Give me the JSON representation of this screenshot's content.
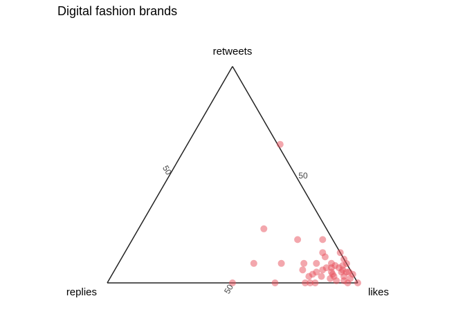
{
  "chart_data": {
    "type": "scatter",
    "subtype": "ternary",
    "title": "Digital fashion brands",
    "axes": {
      "top": "retweets",
      "left": "replies",
      "right": "likes"
    },
    "tick_labels": {
      "left_edge": "50",
      "right_edge": "50",
      "bottom_edge": "50"
    },
    "point_color": "#E8505B",
    "point_opacity": 0.5,
    "grid": false,
    "components_order": [
      "likes",
      "retweets",
      "replies"
    ],
    "points": [
      [
        37,
        64,
        -1
      ],
      [
        50,
        25,
        25
      ],
      [
        66,
        20,
        14
      ],
      [
        76,
        20,
        4
      ],
      [
        86,
        14,
        0
      ],
      [
        79,
        14,
        7
      ],
      [
        81,
        12,
        7
      ],
      [
        89,
        11,
        0
      ],
      [
        92,
        9,
        0
      ],
      [
        79,
        9,
        12
      ],
      [
        54,
        9,
        37
      ],
      [
        65,
        9,
        26
      ],
      [
        74,
        9,
        17
      ],
      [
        85,
        9,
        6
      ],
      [
        87,
        8,
        5
      ],
      [
        90,
        8,
        2
      ],
      [
        86,
        7,
        7
      ],
      [
        84,
        7,
        9
      ],
      [
        89,
        7,
        4
      ],
      [
        91,
        6,
        3
      ],
      [
        75,
        6,
        19
      ],
      [
        83,
        6,
        11
      ],
      [
        91,
        5,
        4
      ],
      [
        93,
        5,
        2
      ],
      [
        94,
        5,
        1
      ],
      [
        81,
        5,
        14
      ],
      [
        87,
        5,
        8
      ],
      [
        97,
        4,
        0
      ],
      [
        88,
        4,
        8
      ],
      [
        80,
        4,
        16
      ],
      [
        84,
        3,
        13
      ],
      [
        79,
        3,
        18
      ],
      [
        89,
        3,
        8
      ],
      [
        93,
        3,
        4
      ],
      [
        96,
        2,
        2
      ],
      [
        88,
        2,
        10
      ],
      [
        91,
        1,
        8
      ],
      [
        94,
        1,
        5
      ],
      [
        79,
        0,
        21
      ],
      [
        81,
        0,
        19
      ],
      [
        83,
        0,
        17
      ],
      [
        67,
        0,
        33
      ],
      [
        50,
        0,
        50
      ],
      [
        96,
        0,
        4
      ],
      [
        100,
        0,
        0
      ]
    ]
  }
}
